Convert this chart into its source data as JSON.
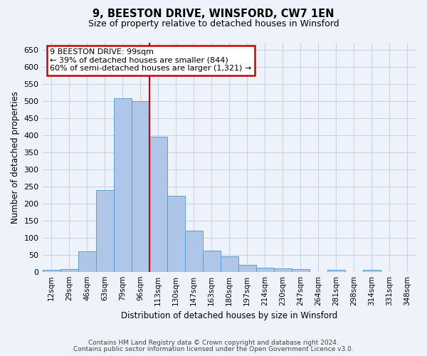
{
  "title": "9, BEESTON DRIVE, WINSFORD, CW7 1EN",
  "subtitle": "Size of property relative to detached houses in Winsford",
  "xlabel": "Distribution of detached houses by size in Winsford",
  "ylabel": "Number of detached properties",
  "categories": [
    "12sqm",
    "29sqm",
    "46sqm",
    "63sqm",
    "79sqm",
    "96sqm",
    "113sqm",
    "130sqm",
    "147sqm",
    "163sqm",
    "180sqm",
    "197sqm",
    "214sqm",
    "230sqm",
    "247sqm",
    "264sqm",
    "281sqm",
    "298sqm",
    "314sqm",
    "331sqm",
    "348sqm"
  ],
  "values": [
    5,
    8,
    60,
    238,
    507,
    500,
    395,
    222,
    120,
    62,
    46,
    20,
    11,
    9,
    8,
    0,
    5,
    0,
    6,
    0,
    0
  ],
  "bar_color": "#aec6e8",
  "bar_edge_color": "#5a9fd4",
  "vline_x": 5.5,
  "annotation_line1": "9 BEESTON DRIVE: 99sqm",
  "annotation_line2": "← 39% of detached houses are smaller (844)",
  "annotation_line3": "60% of semi-detached houses are larger (1,321) →",
  "annotation_box_color": "#ffffff",
  "annotation_border_color": "#cc0000",
  "vline_color": "#cc0000",
  "grid_color": "#c8d4e8",
  "background_color": "#eef2fb",
  "footer_line1": "Contains HM Land Registry data © Crown copyright and database right 2024.",
  "footer_line2": "Contains public sector information licensed under the Open Government Licence v3.0.",
  "ylim_max": 670,
  "yticks": [
    0,
    50,
    100,
    150,
    200,
    250,
    300,
    350,
    400,
    450,
    500,
    550,
    600,
    650
  ]
}
